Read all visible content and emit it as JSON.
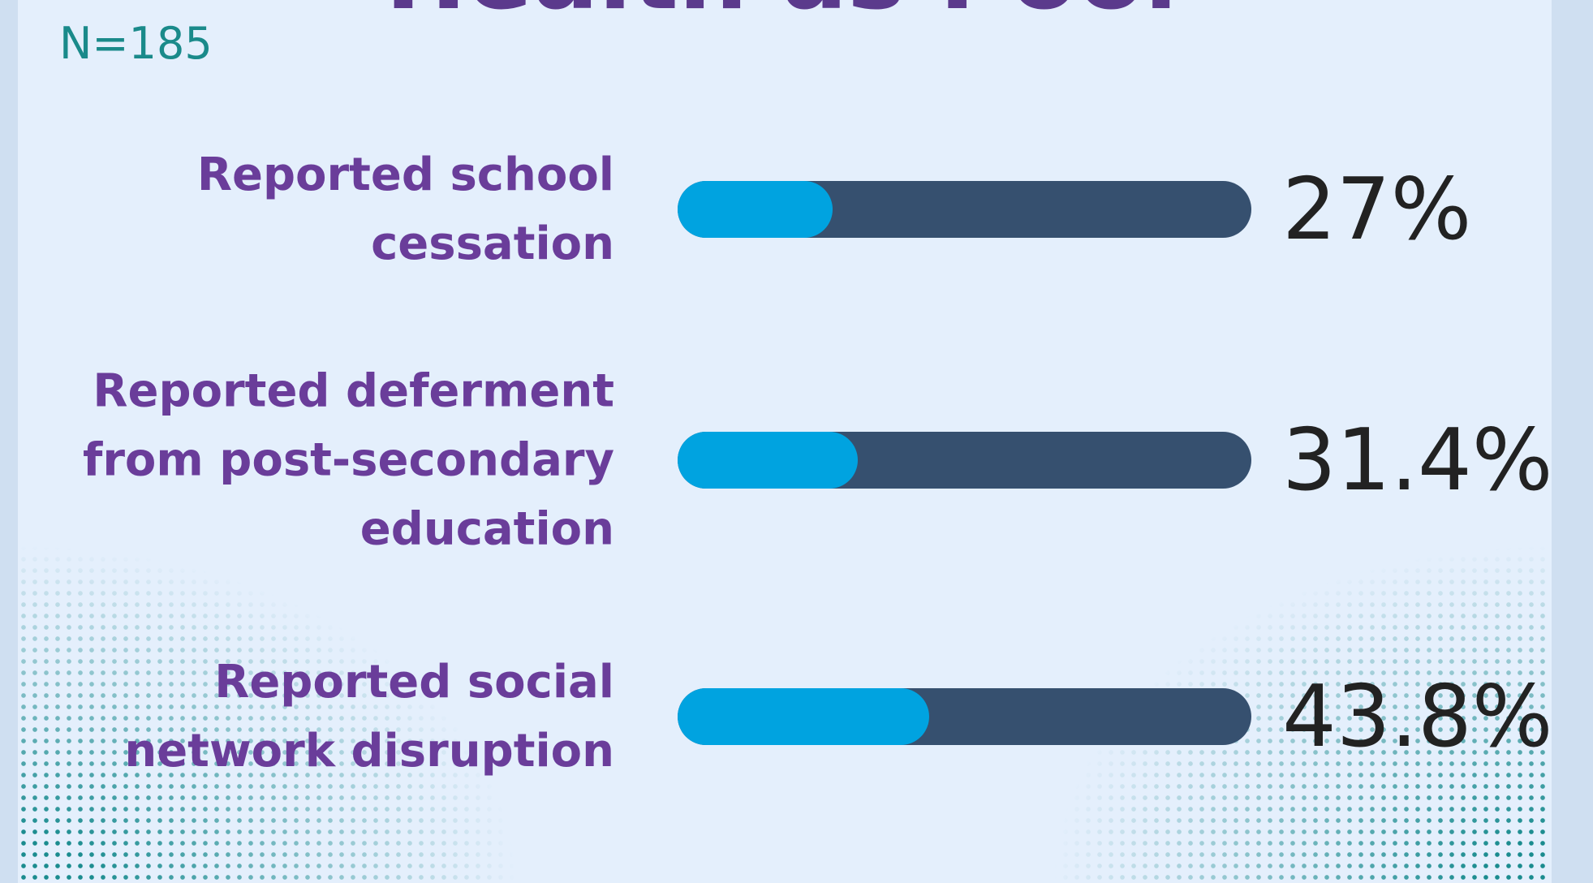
{
  "chart_data": {
    "type": "bar",
    "orientation": "horizontal",
    "title": "Health as Poor",
    "subtitle": "N=185",
    "categories": [
      "Reported school cessation",
      "Reported deferment from post-secondary education",
      "Reported social network disruption"
    ],
    "values": [
      27,
      31.4,
      43.8
    ],
    "value_labels": [
      "27%",
      "31.4%",
      "43.8%"
    ],
    "xlim": [
      0,
      100
    ],
    "color": "#00a3e0",
    "track_color": "#36506f"
  }
}
